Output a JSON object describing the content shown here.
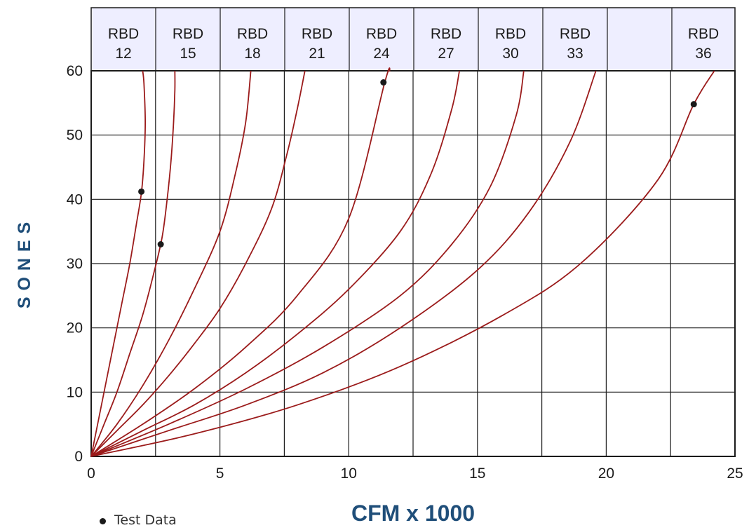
{
  "chart_data": {
    "type": "line",
    "xlabel": "CFM x 1000",
    "ylabel": "S O N E S",
    "xlim": [
      0,
      25
    ],
    "ylim": [
      0,
      60
    ],
    "x_ticks": [
      "0",
      "5",
      "10",
      "15",
      "20",
      "25"
    ],
    "y_ticks": [
      "0",
      "10",
      "20",
      "30",
      "40",
      "50",
      "60"
    ],
    "grid": true,
    "header_labels": [
      {
        "line1": "RBD",
        "line2": "12"
      },
      {
        "line1": "RBD",
        "line2": "15"
      },
      {
        "line1": "RBD",
        "line2": "18"
      },
      {
        "line1": "RBD",
        "line2": "21"
      },
      {
        "line1": "RBD",
        "line2": "24"
      },
      {
        "line1": "RBD",
        "line2": "27"
      },
      {
        "line1": "RBD",
        "line2": "30"
      },
      {
        "line1": "RBD",
        "line2": "33"
      },
      {
        "line1": "",
        "line2": ""
      },
      {
        "line1": "RBD",
        "line2": "36"
      }
    ],
    "series": [
      {
        "name": "RBD 12",
        "points": [
          [
            0,
            0
          ],
          [
            0.3,
            6
          ],
          [
            0.6,
            12
          ],
          [
            0.9,
            18
          ],
          [
            1.2,
            24
          ],
          [
            1.5,
            30
          ],
          [
            1.75,
            36
          ],
          [
            1.95,
            41
          ],
          [
            2.05,
            46
          ],
          [
            2.1,
            52
          ],
          [
            2.05,
            58
          ],
          [
            2.0,
            60
          ]
        ]
      },
      {
        "name": "RBD 15",
        "points": [
          [
            0,
            0
          ],
          [
            0.5,
            5
          ],
          [
            1.0,
            10
          ],
          [
            1.5,
            16
          ],
          [
            2.0,
            22
          ],
          [
            2.4,
            28
          ],
          [
            2.75,
            34
          ],
          [
            2.95,
            40
          ],
          [
            3.1,
            46
          ],
          [
            3.2,
            52
          ],
          [
            3.25,
            57
          ],
          [
            3.25,
            60
          ]
        ]
      },
      {
        "name": "RBD 18",
        "points": [
          [
            0,
            0
          ],
          [
            1,
            5
          ],
          [
            2,
            11
          ],
          [
            3,
            18
          ],
          [
            4,
            26
          ],
          [
            5,
            35
          ],
          [
            5.6,
            44
          ],
          [
            6,
            52
          ],
          [
            6.2,
            60
          ]
        ]
      },
      {
        "name": "RBD 21",
        "points": [
          [
            0,
            0
          ],
          [
            1,
            4
          ],
          [
            2,
            8
          ],
          [
            3,
            12.5
          ],
          [
            4,
            17.5
          ],
          [
            5,
            23
          ],
          [
            6,
            30
          ],
          [
            7,
            38.5
          ],
          [
            7.6,
            47
          ],
          [
            8,
            54
          ],
          [
            8.3,
            60
          ]
        ]
      },
      {
        "name": "RBD 24",
        "points": [
          [
            0,
            0
          ],
          [
            2,
            5
          ],
          [
            4,
            10.5
          ],
          [
            6,
            17
          ],
          [
            8,
            25
          ],
          [
            10,
            37
          ],
          [
            11.4,
            58.2
          ],
          [
            11.6,
            60
          ]
        ]
      },
      {
        "name": "RBD 27",
        "points": [
          [
            0,
            0
          ],
          [
            2,
            4
          ],
          [
            4,
            8
          ],
          [
            6,
            13
          ],
          [
            8,
            19
          ],
          [
            10,
            26
          ],
          [
            12,
            35
          ],
          [
            13.2,
            44
          ],
          [
            14,
            54
          ],
          [
            14.3,
            60
          ]
        ]
      },
      {
        "name": "RBD 30",
        "points": [
          [
            0,
            0
          ],
          [
            3,
            5
          ],
          [
            6,
            10.5
          ],
          [
            9,
            17
          ],
          [
            12,
            25
          ],
          [
            14,
            33
          ],
          [
            15.5,
            42
          ],
          [
            16.5,
            53
          ],
          [
            16.8,
            60
          ]
        ]
      },
      {
        "name": "RBD 33",
        "points": [
          [
            0,
            0
          ],
          [
            3,
            4
          ],
          [
            6,
            8
          ],
          [
            9,
            13
          ],
          [
            12,
            20
          ],
          [
            15,
            29
          ],
          [
            17,
            38
          ],
          [
            18.6,
            49
          ],
          [
            19.6,
            60
          ]
        ]
      },
      {
        "name": "RBD 36",
        "points": [
          [
            0,
            0
          ],
          [
            4,
            3.5
          ],
          [
            8,
            8
          ],
          [
            12,
            14
          ],
          [
            16,
            22
          ],
          [
            19,
            30
          ],
          [
            22,
            43
          ],
          [
            23.4,
            54.8
          ],
          [
            24.2,
            60
          ]
        ]
      }
    ],
    "test_points": [
      [
        1.95,
        41.2
      ],
      [
        2.7,
        33
      ],
      [
        11.35,
        58.2
      ],
      [
        23.4,
        54.8
      ]
    ],
    "legend": "Test Data",
    "colors": {
      "curve": "#9b1b1b",
      "header_fill": "#eeeeff",
      "grid": "#1a1a1a",
      "axis_label": "#1f4e79",
      "tick_text": "#1a1a1a",
      "point": "#1a1a1a"
    }
  }
}
